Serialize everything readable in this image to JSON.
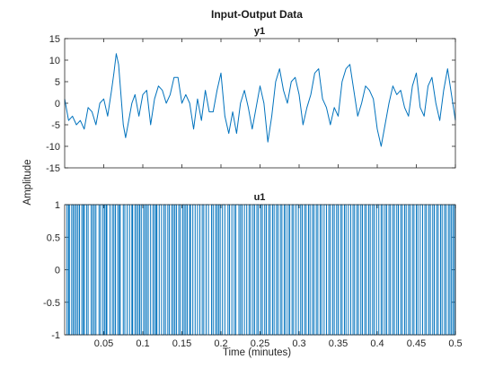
{
  "figure": {
    "title": "Input-Output Data",
    "ylabel": "Amplitude",
    "xlabel": "Time (minutes)"
  },
  "colors": {
    "line": "#0072BD",
    "axes": "#262626",
    "background": "#ffffff"
  },
  "chart_data": [
    {
      "type": "line",
      "title": "y1",
      "xlabel": "Time (minutes)",
      "ylabel": "Amplitude",
      "xlim": [
        0,
        0.5
      ],
      "ylim": [
        -15,
        15
      ],
      "xticks": [
        0.05,
        0.1,
        0.15,
        0.2,
        0.25,
        0.3,
        0.35,
        0.4,
        0.45,
        0.5
      ],
      "yticks": [
        -15,
        -10,
        -5,
        0,
        5,
        10,
        15
      ],
      "ytick_labels": [
        "-15",
        "-10",
        "-5",
        "0",
        "5",
        "10",
        "15"
      ],
      "grid": false,
      "series": [
        {
          "x": [
            0.0,
            0.005,
            0.01,
            0.015,
            0.02,
            0.025,
            0.03,
            0.035,
            0.04,
            0.045,
            0.05,
            0.055,
            0.06,
            0.063,
            0.066,
            0.069,
            0.072,
            0.075,
            0.078,
            0.082,
            0.086,
            0.09,
            0.095,
            0.1,
            0.105,
            0.11,
            0.115,
            0.12,
            0.125,
            0.13,
            0.135,
            0.14,
            0.145,
            0.15,
            0.155,
            0.16,
            0.165,
            0.17,
            0.175,
            0.18,
            0.185,
            0.19,
            0.195,
            0.2,
            0.205,
            0.21,
            0.215,
            0.22,
            0.225,
            0.23,
            0.235,
            0.24,
            0.245,
            0.25,
            0.255,
            0.26,
            0.265,
            0.27,
            0.275,
            0.28,
            0.285,
            0.29,
            0.295,
            0.3,
            0.305,
            0.31,
            0.315,
            0.32,
            0.325,
            0.33,
            0.335,
            0.34,
            0.345,
            0.35,
            0.355,
            0.36,
            0.365,
            0.37,
            0.375,
            0.38,
            0.385,
            0.39,
            0.395,
            0.4,
            0.405,
            0.41,
            0.415,
            0.42,
            0.425,
            0.43,
            0.435,
            0.44,
            0.445,
            0.45,
            0.455,
            0.46,
            0.465,
            0.47,
            0.475,
            0.48,
            0.485,
            0.49,
            0.495,
            0.5
          ],
          "y": [
            1,
            -4,
            -3,
            -5,
            -4,
            -6,
            -1,
            -2,
            -5,
            0,
            1,
            -3,
            3,
            7,
            11.5,
            9,
            2,
            -5,
            -8,
            -4,
            0,
            2,
            -3,
            2,
            3,
            -5,
            1,
            4,
            3,
            0,
            2,
            6,
            6,
            0,
            2,
            0,
            -6,
            1,
            -4,
            3,
            -2,
            -2,
            3,
            7,
            -3,
            -7,
            -2,
            -7,
            0,
            3,
            -1,
            -6,
            -1,
            4,
            0,
            -9,
            -3,
            5,
            8,
            3,
            0,
            5,
            6,
            2,
            -5,
            -1,
            2,
            7,
            8,
            1,
            -1,
            -5,
            -1,
            -3,
            5,
            8,
            9,
            3,
            -3,
            0,
            4,
            3,
            1,
            -6,
            -10,
            -5,
            0,
            4,
            2,
            3,
            -1,
            -3,
            4,
            7,
            -1,
            -3,
            4,
            6,
            0,
            -4,
            3,
            8,
            2,
            -4
          ]
        }
      ]
    },
    {
      "type": "line",
      "title": "u1",
      "xlabel": "Time (minutes)",
      "ylabel": "Amplitude",
      "xlim": [
        0,
        0.5
      ],
      "ylim": [
        -1,
        1
      ],
      "xticks": [
        0.05,
        0.1,
        0.15,
        0.2,
        0.25,
        0.3,
        0.35,
        0.4,
        0.45,
        0.5
      ],
      "xtick_labels": [
        "0.05",
        "0.1",
        "0.15",
        "0.2",
        "0.25",
        "0.3",
        "0.35",
        "0.4",
        "0.45",
        "0.5"
      ],
      "yticks": [
        -1,
        -0.5,
        0,
        0.5,
        1
      ],
      "ytick_labels": [
        "-1",
        "-0.5",
        "0",
        "0.5",
        "1"
      ],
      "grid": false,
      "signal": "binary random input switching between -1 and 1",
      "series": [
        {
          "switch_times": [
            0.003,
            0.005,
            0.006,
            0.009,
            0.011,
            0.013,
            0.015,
            0.017,
            0.019,
            0.022,
            0.024,
            0.025,
            0.028,
            0.03,
            0.034,
            0.036,
            0.038,
            0.04,
            0.044,
            0.046,
            0.049,
            0.051,
            0.053,
            0.054,
            0.058,
            0.061,
            0.063,
            0.065,
            0.068,
            0.07,
            0.071,
            0.075,
            0.077,
            0.08,
            0.083,
            0.086,
            0.087,
            0.09,
            0.092,
            0.094,
            0.096,
            0.098,
            0.101,
            0.103,
            0.105,
            0.107,
            0.11,
            0.113,
            0.115,
            0.117,
            0.118,
            0.121,
            0.124,
            0.127,
            0.129,
            0.132,
            0.134,
            0.137,
            0.139,
            0.141,
            0.143,
            0.146,
            0.148,
            0.151,
            0.153,
            0.155,
            0.157,
            0.16,
            0.161,
            0.164,
            0.167,
            0.17,
            0.173,
            0.176,
            0.178,
            0.181,
            0.184,
            0.188,
            0.19,
            0.193,
            0.195,
            0.197,
            0.199,
            0.202,
            0.205,
            0.209,
            0.211,
            0.214,
            0.217,
            0.219,
            0.223,
            0.225,
            0.227,
            0.23,
            0.233,
            0.236,
            0.238,
            0.241,
            0.243,
            0.246,
            0.248,
            0.251,
            0.253,
            0.256,
            0.258,
            0.261,
            0.263,
            0.266,
            0.268,
            0.271,
            0.273,
            0.276,
            0.278,
            0.281,
            0.283,
            0.286,
            0.288,
            0.291,
            0.293,
            0.296,
            0.299,
            0.302,
            0.304,
            0.307,
            0.309,
            0.312,
            0.314,
            0.317,
            0.319,
            0.322,
            0.324,
            0.327,
            0.329,
            0.332,
            0.335,
            0.338,
            0.34,
            0.343,
            0.345,
            0.348,
            0.35,
            0.353,
            0.355,
            0.358,
            0.36,
            0.363,
            0.366,
            0.369,
            0.371,
            0.374,
            0.376,
            0.379,
            0.381,
            0.384,
            0.386,
            0.389,
            0.391,
            0.394,
            0.396,
            0.399,
            0.402,
            0.405,
            0.407,
            0.41,
            0.412,
            0.415,
            0.417,
            0.42,
            0.422,
            0.425,
            0.427,
            0.43,
            0.432,
            0.435,
            0.437,
            0.44,
            0.442,
            0.445,
            0.447,
            0.45,
            0.452,
            0.455,
            0.458,
            0.461,
            0.463,
            0.466,
            0.468,
            0.471,
            0.473,
            0.476,
            0.478,
            0.481,
            0.483,
            0.486,
            0.488,
            0.491,
            0.493,
            0.495,
            0.497,
            0.499
          ]
        }
      ]
    }
  ]
}
